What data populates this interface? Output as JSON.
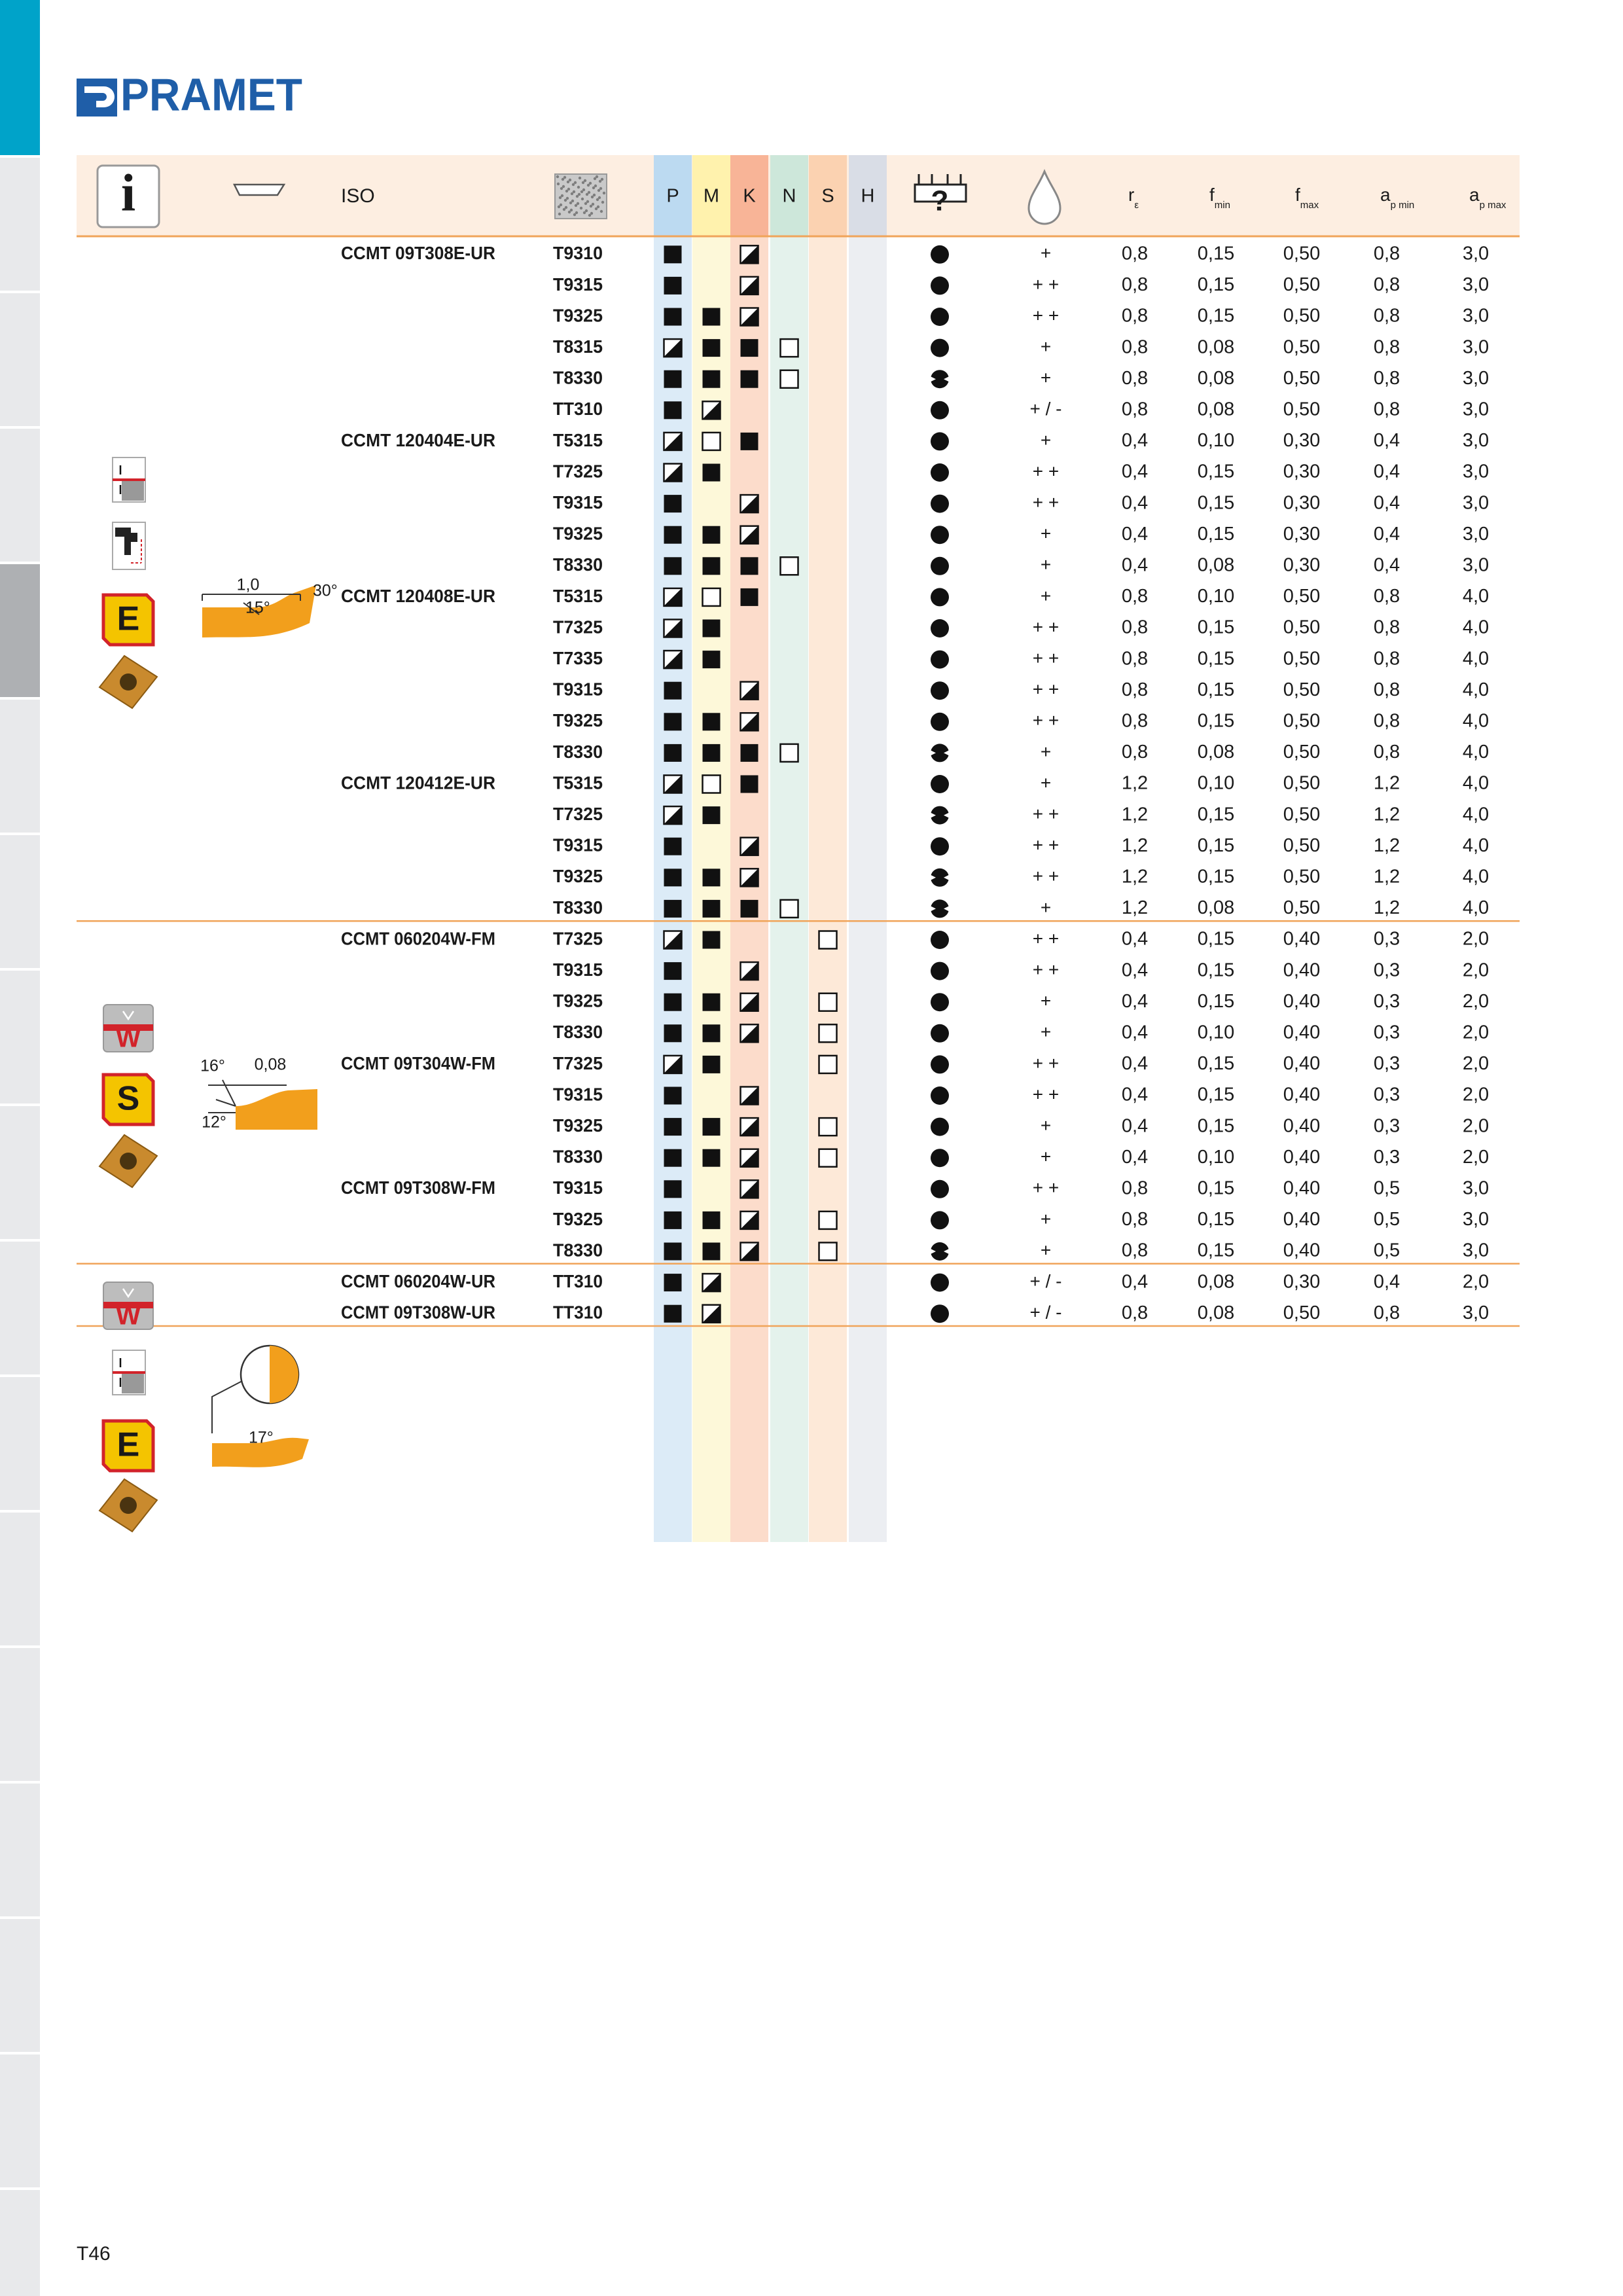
{
  "header": {
    "logo": "PRAMET",
    "info_icon": "i",
    "iso": "ISO",
    "materials": [
      "P",
      "M",
      "K",
      "N",
      "S",
      "H"
    ],
    "stability_icon": "?",
    "re": {
      "base": "r",
      "sub": "ε"
    },
    "fmin": {
      "base": "f",
      "sub": "min"
    },
    "fmax": {
      "base": "f",
      "sub": "max"
    },
    "apmin": {
      "base": "a",
      "sub": "p min"
    },
    "apmax": {
      "base": "a",
      "sub": "p max"
    }
  },
  "groups": [
    {
      "badges": [
        "E"
      ],
      "angles": [
        "1,0",
        "30°",
        "15°"
      ],
      "rows": [
        {
          "iso": "CCMT 09T308E-UR",
          "grade": "T9310",
          "mat": [
            "F",
            null,
            "H",
            null,
            null,
            null
          ],
          "stab": "round",
          "cool": "+",
          "re": "0,8",
          "fmin": "0,15",
          "fmax": "0,50",
          "apmin": "0,8",
          "apmax": "3,0"
        },
        {
          "grade": "T9315",
          "mat": [
            "F",
            null,
            "H",
            null,
            null,
            null
          ],
          "stab": "round",
          "cool": "+ +",
          "re": "0,8",
          "fmin": "0,15",
          "fmax": "0,50",
          "apmin": "0,8",
          "apmax": "3,0"
        },
        {
          "grade": "T9325",
          "mat": [
            "F",
            "F",
            "H",
            null,
            null,
            null
          ],
          "stab": "round",
          "cool": "+ +",
          "re": "0,8",
          "fmin": "0,15",
          "fmax": "0,50",
          "apmin": "0,8",
          "apmax": "3,0"
        },
        {
          "grade": "T8315",
          "mat": [
            "H",
            "F",
            "F",
            "O",
            null,
            null
          ],
          "stab": "round",
          "cool": "+",
          "re": "0,8",
          "fmin": "0,08",
          "fmax": "0,50",
          "apmin": "0,8",
          "apmax": "3,0"
        },
        {
          "grade": "T8330",
          "mat": [
            "F",
            "F",
            "F",
            "O",
            null,
            null
          ],
          "stab": "clamp",
          "cool": "+",
          "re": "0,8",
          "fmin": "0,08",
          "fmax": "0,50",
          "apmin": "0,8",
          "apmax": "3,0"
        },
        {
          "grade": "TT310",
          "mat": [
            "F",
            "H",
            null,
            null,
            null,
            null
          ],
          "stab": "round",
          "cool": "+ / -",
          "re": "0,8",
          "fmin": "0,08",
          "fmax": "0,50",
          "apmin": "0,8",
          "apmax": "3,0"
        },
        {
          "iso": "CCMT 120404E-UR",
          "grade": "T5315",
          "mat": [
            "H",
            "O",
            "F",
            null,
            null,
            null
          ],
          "stab": "round",
          "cool": "+",
          "re": "0,4",
          "fmin": "0,10",
          "fmax": "0,30",
          "apmin": "0,4",
          "apmax": "3,0"
        },
        {
          "grade": "T7325",
          "mat": [
            "H",
            "F",
            null,
            null,
            null,
            null
          ],
          "stab": "round",
          "cool": "+ +",
          "re": "0,4",
          "fmin": "0,15",
          "fmax": "0,30",
          "apmin": "0,4",
          "apmax": "3,0"
        },
        {
          "grade": "T9315",
          "mat": [
            "F",
            null,
            "H",
            null,
            null,
            null
          ],
          "stab": "round",
          "cool": "+ +",
          "re": "0,4",
          "fmin": "0,15",
          "fmax": "0,30",
          "apmin": "0,4",
          "apmax": "3,0"
        },
        {
          "grade": "T9325",
          "mat": [
            "F",
            "F",
            "H",
            null,
            null,
            null
          ],
          "stab": "round",
          "cool": "+",
          "re": "0,4",
          "fmin": "0,15",
          "fmax": "0,30",
          "apmin": "0,4",
          "apmax": "3,0"
        },
        {
          "grade": "T8330",
          "mat": [
            "F",
            "F",
            "F",
            "O",
            null,
            null
          ],
          "stab": "round",
          "cool": "+",
          "re": "0,4",
          "fmin": "0,08",
          "fmax": "0,30",
          "apmin": "0,4",
          "apmax": "3,0"
        },
        {
          "iso": "CCMT 120408E-UR",
          "grade": "T5315",
          "mat": [
            "H",
            "O",
            "F",
            null,
            null,
            null
          ],
          "stab": "round",
          "cool": "+",
          "re": "0,8",
          "fmin": "0,10",
          "fmax": "0,50",
          "apmin": "0,8",
          "apmax": "4,0"
        },
        {
          "grade": "T7325",
          "mat": [
            "H",
            "F",
            null,
            null,
            null,
            null
          ],
          "stab": "round",
          "cool": "+ +",
          "re": "0,8",
          "fmin": "0,15",
          "fmax": "0,50",
          "apmin": "0,8",
          "apmax": "4,0"
        },
        {
          "grade": "T7335",
          "mat": [
            "H",
            "F",
            null,
            null,
            null,
            null
          ],
          "stab": "round",
          "cool": "+ +",
          "re": "0,8",
          "fmin": "0,15",
          "fmax": "0,50",
          "apmin": "0,8",
          "apmax": "4,0"
        },
        {
          "grade": "T9315",
          "mat": [
            "F",
            null,
            "H",
            null,
            null,
            null
          ],
          "stab": "round",
          "cool": "+ +",
          "re": "0,8",
          "fmin": "0,15",
          "fmax": "0,50",
          "apmin": "0,8",
          "apmax": "4,0"
        },
        {
          "grade": "T9325",
          "mat": [
            "F",
            "F",
            "H",
            null,
            null,
            null
          ],
          "stab": "round",
          "cool": "+ +",
          "re": "0,8",
          "fmin": "0,15",
          "fmax": "0,50",
          "apmin": "0,8",
          "apmax": "4,0"
        },
        {
          "grade": "T8330",
          "mat": [
            "F",
            "F",
            "F",
            "O",
            null,
            null
          ],
          "stab": "clamp",
          "cool": "+",
          "re": "0,8",
          "fmin": "0,08",
          "fmax": "0,50",
          "apmin": "0,8",
          "apmax": "4,0"
        },
        {
          "iso": "CCMT 120412E-UR",
          "grade": "T5315",
          "mat": [
            "H",
            "O",
            "F",
            null,
            null,
            null
          ],
          "stab": "round",
          "cool": "+",
          "re": "1,2",
          "fmin": "0,10",
          "fmax": "0,50",
          "apmin": "1,2",
          "apmax": "4,0"
        },
        {
          "grade": "T7325",
          "mat": [
            "H",
            "F",
            null,
            null,
            null,
            null
          ],
          "stab": "clamp",
          "cool": "+ +",
          "re": "1,2",
          "fmin": "0,15",
          "fmax": "0,50",
          "apmin": "1,2",
          "apmax": "4,0"
        },
        {
          "grade": "T9315",
          "mat": [
            "F",
            null,
            "H",
            null,
            null,
            null
          ],
          "stab": "round",
          "cool": "+ +",
          "re": "1,2",
          "fmin": "0,15",
          "fmax": "0,50",
          "apmin": "1,2",
          "apmax": "4,0"
        },
        {
          "grade": "T9325",
          "mat": [
            "F",
            "F",
            "H",
            null,
            null,
            null
          ],
          "stab": "clamp",
          "cool": "+ +",
          "re": "1,2",
          "fmin": "0,15",
          "fmax": "0,50",
          "apmin": "1,2",
          "apmax": "4,0"
        },
        {
          "grade": "T8330",
          "mat": [
            "F",
            "F",
            "F",
            "O",
            null,
            null
          ],
          "stab": "clamp",
          "cool": "+",
          "re": "1,2",
          "fmin": "0,08",
          "fmax": "0,50",
          "apmin": "1,2",
          "apmax": "4,0"
        }
      ]
    },
    {
      "badges": [
        "W",
        "S"
      ],
      "angles": [
        "16°",
        "0,08",
        "12°"
      ],
      "rows": [
        {
          "iso": "CCMT 060204W-FM",
          "grade": "T7325",
          "mat": [
            "H",
            "F",
            null,
            null,
            "O",
            null
          ],
          "stab": "round",
          "cool": "+ +",
          "re": "0,4",
          "fmin": "0,15",
          "fmax": "0,40",
          "apmin": "0,3",
          "apmax": "2,0"
        },
        {
          "grade": "T9315",
          "mat": [
            "F",
            null,
            "H",
            null,
            null,
            null
          ],
          "stab": "round",
          "cool": "+ +",
          "re": "0,4",
          "fmin": "0,15",
          "fmax": "0,40",
          "apmin": "0,3",
          "apmax": "2,0"
        },
        {
          "grade": "T9325",
          "mat": [
            "F",
            "F",
            "H",
            null,
            "O",
            null
          ],
          "stab": "round",
          "cool": "+",
          "re": "0,4",
          "fmin": "0,15",
          "fmax": "0,40",
          "apmin": "0,3",
          "apmax": "2,0"
        },
        {
          "grade": "T8330",
          "mat": [
            "F",
            "F",
            "H",
            null,
            "O",
            null
          ],
          "stab": "round",
          "cool": "+",
          "re": "0,4",
          "fmin": "0,10",
          "fmax": "0,40",
          "apmin": "0,3",
          "apmax": "2,0"
        },
        {
          "iso": "CCMT 09T304W-FM",
          "grade": "T7325",
          "mat": [
            "H",
            "F",
            null,
            null,
            "O",
            null
          ],
          "stab": "round",
          "cool": "+ +",
          "re": "0,4",
          "fmin": "0,15",
          "fmax": "0,40",
          "apmin": "0,3",
          "apmax": "2,0"
        },
        {
          "grade": "T9315",
          "mat": [
            "F",
            null,
            "H",
            null,
            null,
            null
          ],
          "stab": "round",
          "cool": "+ +",
          "re": "0,4",
          "fmin": "0,15",
          "fmax": "0,40",
          "apmin": "0,3",
          "apmax": "2,0"
        },
        {
          "grade": "T9325",
          "mat": [
            "F",
            "F",
            "H",
            null,
            "O",
            null
          ],
          "stab": "round",
          "cool": "+",
          "re": "0,4",
          "fmin": "0,15",
          "fmax": "0,40",
          "apmin": "0,3",
          "apmax": "2,0"
        },
        {
          "grade": "T8330",
          "mat": [
            "F",
            "F",
            "H",
            null,
            "O",
            null
          ],
          "stab": "round",
          "cool": "+",
          "re": "0,4",
          "fmin": "0,10",
          "fmax": "0,40",
          "apmin": "0,3",
          "apmax": "2,0"
        },
        {
          "iso": "CCMT 09T308W-FM",
          "grade": "T9315",
          "mat": [
            "F",
            null,
            "H",
            null,
            null,
            null
          ],
          "stab": "round",
          "cool": "+ +",
          "re": "0,8",
          "fmin": "0,15",
          "fmax": "0,40",
          "apmin": "0,5",
          "apmax": "3,0"
        },
        {
          "grade": "T9325",
          "mat": [
            "F",
            "F",
            "H",
            null,
            "O",
            null
          ],
          "stab": "round",
          "cool": "+",
          "re": "0,8",
          "fmin": "0,15",
          "fmax": "0,40",
          "apmin": "0,5",
          "apmax": "3,0"
        },
        {
          "grade": "T8330",
          "mat": [
            "F",
            "F",
            "H",
            null,
            "O",
            null
          ],
          "stab": "clamp",
          "cool": "+",
          "re": "0,8",
          "fmin": "0,15",
          "fmax": "0,40",
          "apmin": "0,5",
          "apmax": "3,0"
        }
      ]
    },
    {
      "badges": [
        "W",
        "E"
      ],
      "angles": [
        "17°"
      ],
      "rows": [
        {
          "iso": "CCMT 060204W-UR",
          "grade": "TT310",
          "mat": [
            "F",
            "H",
            null,
            null,
            null,
            null
          ],
          "stab": "round",
          "cool": "+ / -",
          "re": "0,4",
          "fmin": "0,08",
          "fmax": "0,30",
          "apmin": "0,4",
          "apmax": "2,0"
        },
        {
          "iso": "CCMT 09T308W-UR",
          "grade": "TT310",
          "mat": [
            "F",
            "H",
            null,
            null,
            null,
            null
          ],
          "stab": "round",
          "cool": "+ / -",
          "re": "0,8",
          "fmin": "0,08",
          "fmax": "0,50",
          "apmin": "0,8",
          "apmax": "3,0"
        }
      ]
    }
  ],
  "footer": {
    "page": "T46"
  }
}
